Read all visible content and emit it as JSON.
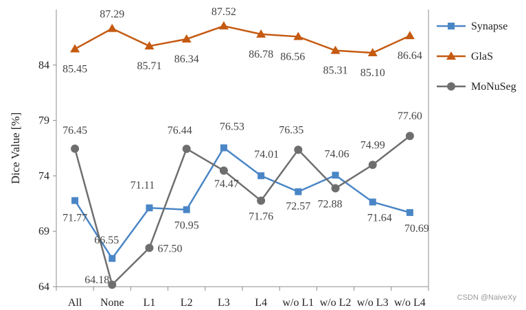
{
  "chart_data": {
    "type": "line",
    "categories": [
      "All",
      "None",
      "L1",
      "L2",
      "L3",
      "L4",
      "w/o L1",
      "w/o L2",
      "w/o L3",
      "w/o L4"
    ],
    "ylabel": "Dice Value [%]",
    "ylim": [
      64,
      89
    ],
    "yticks": [
      "64",
      "69",
      "74",
      "79",
      "84"
    ],
    "grid": "none",
    "legend_position": "right",
    "series": [
      {
        "name": "Synapse",
        "color": "#4a86c6",
        "marker": "square",
        "values": [
          71.77,
          66.55,
          71.11,
          70.95,
          76.53,
          74.01,
          72.57,
          74.06,
          71.64,
          70.69
        ],
        "labels": [
          "71.77",
          "66.55",
          "71.11",
          "70.95",
          "76.53",
          "74.01",
          "72.57",
          "74.06",
          "71.64",
          "70.69"
        ]
      },
      {
        "name": "GlaS",
        "color": "#c55a11",
        "marker": "triangle",
        "values": [
          85.45,
          87.29,
          85.71,
          86.34,
          87.52,
          86.78,
          86.56,
          85.31,
          85.1,
          86.64
        ],
        "labels": [
          "85.45",
          "87.29",
          "85.71",
          "86.34",
          "87.52",
          "86.78",
          "86.56",
          "85.31",
          "85.10",
          "86.64"
        ]
      },
      {
        "name": "MoNuSeg",
        "color": "#6e6e6e",
        "marker": "circle",
        "values": [
          76.45,
          64.18,
          67.5,
          76.44,
          74.47,
          71.76,
          76.35,
          72.88,
          74.99,
          77.6
        ],
        "labels": [
          "76.45",
          "64.18",
          "67.50",
          "76.44",
          "74.47",
          "71.76",
          "76.35",
          "72.88",
          "74.99",
          "77.60"
        ]
      }
    ]
  },
  "watermark": "CSDN @NaiveXy"
}
